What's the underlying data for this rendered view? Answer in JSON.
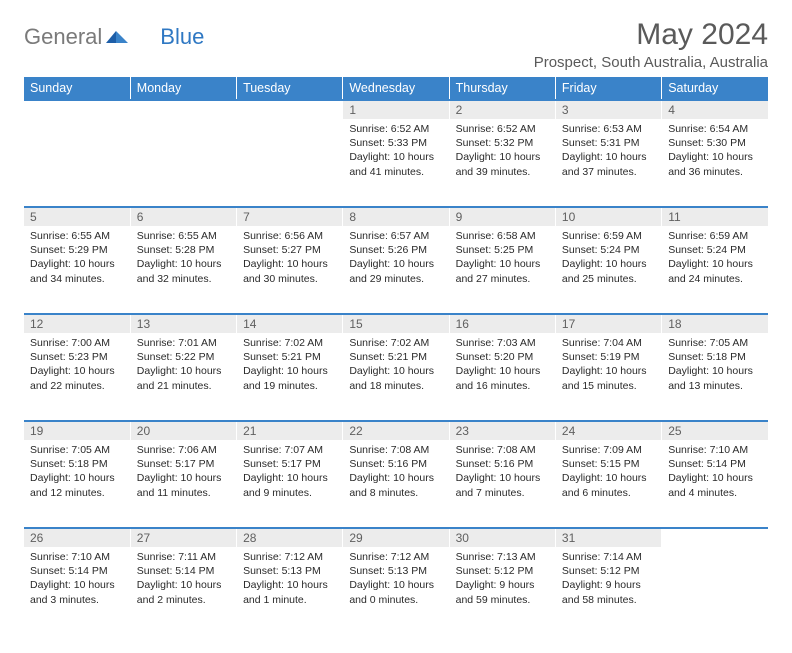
{
  "logo": {
    "text1": "General",
    "text2": "Blue"
  },
  "title": "May 2024",
  "location": "Prospect, South Australia, Australia",
  "colors": {
    "header_bg": "#3a83c9",
    "header_text": "#ffffff",
    "daynum_bg": "#ececec",
    "daynum_text": "#606060",
    "row_divider": "#3a83c9",
    "body_text": "#2a2a2a",
    "title_text": "#5a5a5a",
    "logo_gray": "#7a7a7a",
    "logo_blue": "#2f78c3"
  },
  "day_headers": [
    "Sunday",
    "Monday",
    "Tuesday",
    "Wednesday",
    "Thursday",
    "Friday",
    "Saturday"
  ],
  "weeks": [
    [
      null,
      null,
      null,
      {
        "n": "1",
        "sunrise": "6:52 AM",
        "sunset": "5:33 PM",
        "daylight": "10 hours and 41 minutes."
      },
      {
        "n": "2",
        "sunrise": "6:52 AM",
        "sunset": "5:32 PM",
        "daylight": "10 hours and 39 minutes."
      },
      {
        "n": "3",
        "sunrise": "6:53 AM",
        "sunset": "5:31 PM",
        "daylight": "10 hours and 37 minutes."
      },
      {
        "n": "4",
        "sunrise": "6:54 AM",
        "sunset": "5:30 PM",
        "daylight": "10 hours and 36 minutes."
      }
    ],
    [
      {
        "n": "5",
        "sunrise": "6:55 AM",
        "sunset": "5:29 PM",
        "daylight": "10 hours and 34 minutes."
      },
      {
        "n": "6",
        "sunrise": "6:55 AM",
        "sunset": "5:28 PM",
        "daylight": "10 hours and 32 minutes."
      },
      {
        "n": "7",
        "sunrise": "6:56 AM",
        "sunset": "5:27 PM",
        "daylight": "10 hours and 30 minutes."
      },
      {
        "n": "8",
        "sunrise": "6:57 AM",
        "sunset": "5:26 PM",
        "daylight": "10 hours and 29 minutes."
      },
      {
        "n": "9",
        "sunrise": "6:58 AM",
        "sunset": "5:25 PM",
        "daylight": "10 hours and 27 minutes."
      },
      {
        "n": "10",
        "sunrise": "6:59 AM",
        "sunset": "5:24 PM",
        "daylight": "10 hours and 25 minutes."
      },
      {
        "n": "11",
        "sunrise": "6:59 AM",
        "sunset": "5:24 PM",
        "daylight": "10 hours and 24 minutes."
      }
    ],
    [
      {
        "n": "12",
        "sunrise": "7:00 AM",
        "sunset": "5:23 PM",
        "daylight": "10 hours and 22 minutes."
      },
      {
        "n": "13",
        "sunrise": "7:01 AM",
        "sunset": "5:22 PM",
        "daylight": "10 hours and 21 minutes."
      },
      {
        "n": "14",
        "sunrise": "7:02 AM",
        "sunset": "5:21 PM",
        "daylight": "10 hours and 19 minutes."
      },
      {
        "n": "15",
        "sunrise": "7:02 AM",
        "sunset": "5:21 PM",
        "daylight": "10 hours and 18 minutes."
      },
      {
        "n": "16",
        "sunrise": "7:03 AM",
        "sunset": "5:20 PM",
        "daylight": "10 hours and 16 minutes."
      },
      {
        "n": "17",
        "sunrise": "7:04 AM",
        "sunset": "5:19 PM",
        "daylight": "10 hours and 15 minutes."
      },
      {
        "n": "18",
        "sunrise": "7:05 AM",
        "sunset": "5:18 PM",
        "daylight": "10 hours and 13 minutes."
      }
    ],
    [
      {
        "n": "19",
        "sunrise": "7:05 AM",
        "sunset": "5:18 PM",
        "daylight": "10 hours and 12 minutes."
      },
      {
        "n": "20",
        "sunrise": "7:06 AM",
        "sunset": "5:17 PM",
        "daylight": "10 hours and 11 minutes."
      },
      {
        "n": "21",
        "sunrise": "7:07 AM",
        "sunset": "5:17 PM",
        "daylight": "10 hours and 9 minutes."
      },
      {
        "n": "22",
        "sunrise": "7:08 AM",
        "sunset": "5:16 PM",
        "daylight": "10 hours and 8 minutes."
      },
      {
        "n": "23",
        "sunrise": "7:08 AM",
        "sunset": "5:16 PM",
        "daylight": "10 hours and 7 minutes."
      },
      {
        "n": "24",
        "sunrise": "7:09 AM",
        "sunset": "5:15 PM",
        "daylight": "10 hours and 6 minutes."
      },
      {
        "n": "25",
        "sunrise": "7:10 AM",
        "sunset": "5:14 PM",
        "daylight": "10 hours and 4 minutes."
      }
    ],
    [
      {
        "n": "26",
        "sunrise": "7:10 AM",
        "sunset": "5:14 PM",
        "daylight": "10 hours and 3 minutes."
      },
      {
        "n": "27",
        "sunrise": "7:11 AM",
        "sunset": "5:14 PM",
        "daylight": "10 hours and 2 minutes."
      },
      {
        "n": "28",
        "sunrise": "7:12 AM",
        "sunset": "5:13 PM",
        "daylight": "10 hours and 1 minute."
      },
      {
        "n": "29",
        "sunrise": "7:12 AM",
        "sunset": "5:13 PM",
        "daylight": "10 hours and 0 minutes."
      },
      {
        "n": "30",
        "sunrise": "7:13 AM",
        "sunset": "5:12 PM",
        "daylight": "9 hours and 59 minutes."
      },
      {
        "n": "31",
        "sunrise": "7:14 AM",
        "sunset": "5:12 PM",
        "daylight": "9 hours and 58 minutes."
      },
      null
    ]
  ],
  "labels": {
    "sunrise": "Sunrise:",
    "sunset": "Sunset:",
    "daylight": "Daylight:"
  }
}
